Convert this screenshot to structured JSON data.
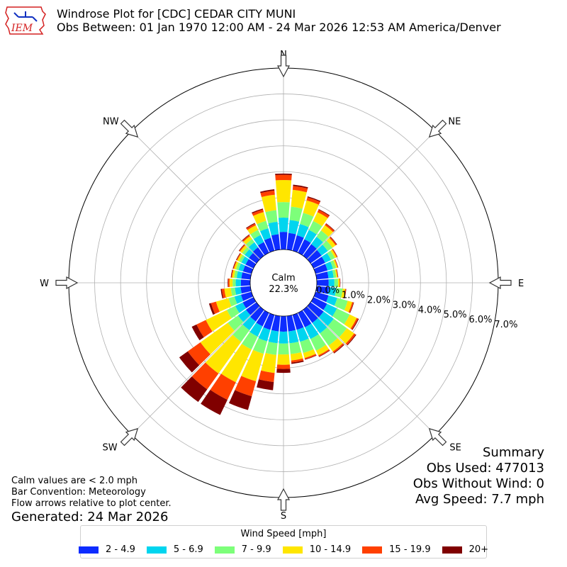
{
  "header": {
    "title": "Windrose Plot for [CDC] CEDAR CITY MUNI",
    "subtitle": "Obs Between: 01 Jan 1970 12:00 AM - 24 Mar 2026 12:53 AM America/Denver",
    "logo_text": "IEM"
  },
  "notes": {
    "calm_note": "Calm values are < 2.0 mph",
    "bar_convention": "Bar Convention: Meteorology",
    "flow_note": "Flow arrows relative to plot center.",
    "generated": "Generated: 24 Mar 2026"
  },
  "summary": {
    "heading": "Summary",
    "obs_used": "Obs Used: 477013",
    "obs_without_wind": "Obs Without Wind: 0",
    "avg_speed": "Avg Speed: 7.7 mph"
  },
  "calm": {
    "label": "Calm",
    "value": "22.3%"
  },
  "legend": {
    "title": "Wind Speed [mph]",
    "items": [
      {
        "label": "2 - 4.9",
        "color": "#0d2cff"
      },
      {
        "label": "5 - 6.9",
        "color": "#00d5ef"
      },
      {
        "label": "7 - 9.9",
        "color": "#7dff7a"
      },
      {
        "label": "10 - 14.9",
        "color": "#ffe600"
      },
      {
        "label": "15 - 19.9",
        "color": "#ff4000"
      },
      {
        "label": "20+",
        "color": "#800000"
      }
    ]
  },
  "colors": {
    "arrow_fill": "#ffffff",
    "arrow_stroke": "#333333",
    "grid": "#b0b0b0",
    "logo_red": "#d42020",
    "logo_blue": "#1030c0"
  },
  "chart_data": {
    "type": "windrose",
    "title": "Windrose Plot for [CDC] CEDAR CITY MUNI",
    "direction_labels": [
      "N",
      "NE",
      "E",
      "SE",
      "S",
      "SW",
      "W",
      "NW"
    ],
    "radial_tick_labels": [
      "0.0%",
      "1.0%",
      "2.0%",
      "3.0%",
      "4.0%",
      "5.0%",
      "6.0%",
      "7.0%"
    ],
    "radial_max_percent": 7.0,
    "calm_percent": 22.3,
    "direction_bins_deg": [
      0,
      10,
      20,
      30,
      40,
      50,
      60,
      70,
      80,
      90,
      100,
      110,
      120,
      130,
      140,
      150,
      160,
      170,
      180,
      190,
      200,
      210,
      220,
      230,
      240,
      250,
      260,
      270,
      280,
      290,
      300,
      310,
      320,
      330,
      340,
      350
    ],
    "series": [
      {
        "name": "2 - 4.9",
        "values": [
          0.68,
          0.65,
          0.62,
          0.58,
          0.55,
          0.52,
          0.5,
          0.48,
          0.46,
          0.46,
          0.48,
          0.52,
          0.58,
          0.62,
          0.62,
          0.62,
          0.6,
          0.6,
          0.6,
          0.6,
          0.6,
          0.58,
          0.55,
          0.5,
          0.46,
          0.42,
          0.38,
          0.36,
          0.35,
          0.34,
          0.34,
          0.36,
          0.4,
          0.46,
          0.52,
          0.6
        ]
      },
      {
        "name": "5 - 6.9",
        "values": [
          0.55,
          0.5,
          0.45,
          0.4,
          0.35,
          0.3,
          0.25,
          0.22,
          0.2,
          0.22,
          0.28,
          0.35,
          0.42,
          0.48,
          0.5,
          0.5,
          0.48,
          0.46,
          0.46,
          0.46,
          0.46,
          0.44,
          0.42,
          0.38,
          0.32,
          0.26,
          0.22,
          0.2,
          0.18,
          0.18,
          0.18,
          0.2,
          0.24,
          0.3,
          0.38,
          0.48
        ]
      },
      {
        "name": "7 - 9.9",
        "values": [
          0.6,
          0.52,
          0.45,
          0.38,
          0.3,
          0.22,
          0.16,
          0.12,
          0.1,
          0.14,
          0.25,
          0.42,
          0.55,
          0.62,
          0.58,
          0.5,
          0.45,
          0.42,
          0.42,
          0.45,
          0.5,
          0.55,
          0.55,
          0.48,
          0.36,
          0.24,
          0.16,
          0.12,
          0.1,
          0.1,
          0.1,
          0.12,
          0.15,
          0.22,
          0.3,
          0.45
        ]
      },
      {
        "name": "10 - 14.9",
        "values": [
          0.85,
          0.65,
          0.5,
          0.38,
          0.25,
          0.15,
          0.08,
          0.06,
          0.05,
          0.06,
          0.1,
          0.18,
          0.3,
          0.35,
          0.28,
          0.2,
          0.2,
          0.25,
          0.4,
          0.7,
          1.1,
          1.4,
          1.5,
          1.3,
          0.9,
          0.5,
          0.25,
          0.12,
          0.08,
          0.08,
          0.08,
          0.1,
          0.14,
          0.2,
          0.35,
          0.6
        ]
      },
      {
        "name": "15 - 19.9",
        "values": [
          0.2,
          0.15,
          0.12,
          0.1,
          0.07,
          0.05,
          0.03,
          0.02,
          0.02,
          0.02,
          0.03,
          0.05,
          0.06,
          0.07,
          0.06,
          0.05,
          0.05,
          0.08,
          0.16,
          0.35,
          0.6,
          0.75,
          0.75,
          0.6,
          0.4,
          0.2,
          0.1,
          0.05,
          0.03,
          0.03,
          0.03,
          0.04,
          0.05,
          0.07,
          0.1,
          0.16
        ]
      },
      {
        "name": "20+",
        "values": [
          0.05,
          0.05,
          0.04,
          0.03,
          0.02,
          0.02,
          0.01,
          0.01,
          0.01,
          0.01,
          0.01,
          0.02,
          0.03,
          0.03,
          0.03,
          0.02,
          0.02,
          0.05,
          0.15,
          0.32,
          0.55,
          0.65,
          0.6,
          0.4,
          0.2,
          0.08,
          0.04,
          0.02,
          0.02,
          0.02,
          0.02,
          0.02,
          0.02,
          0.03,
          0.04,
          0.05
        ]
      }
    ]
  }
}
